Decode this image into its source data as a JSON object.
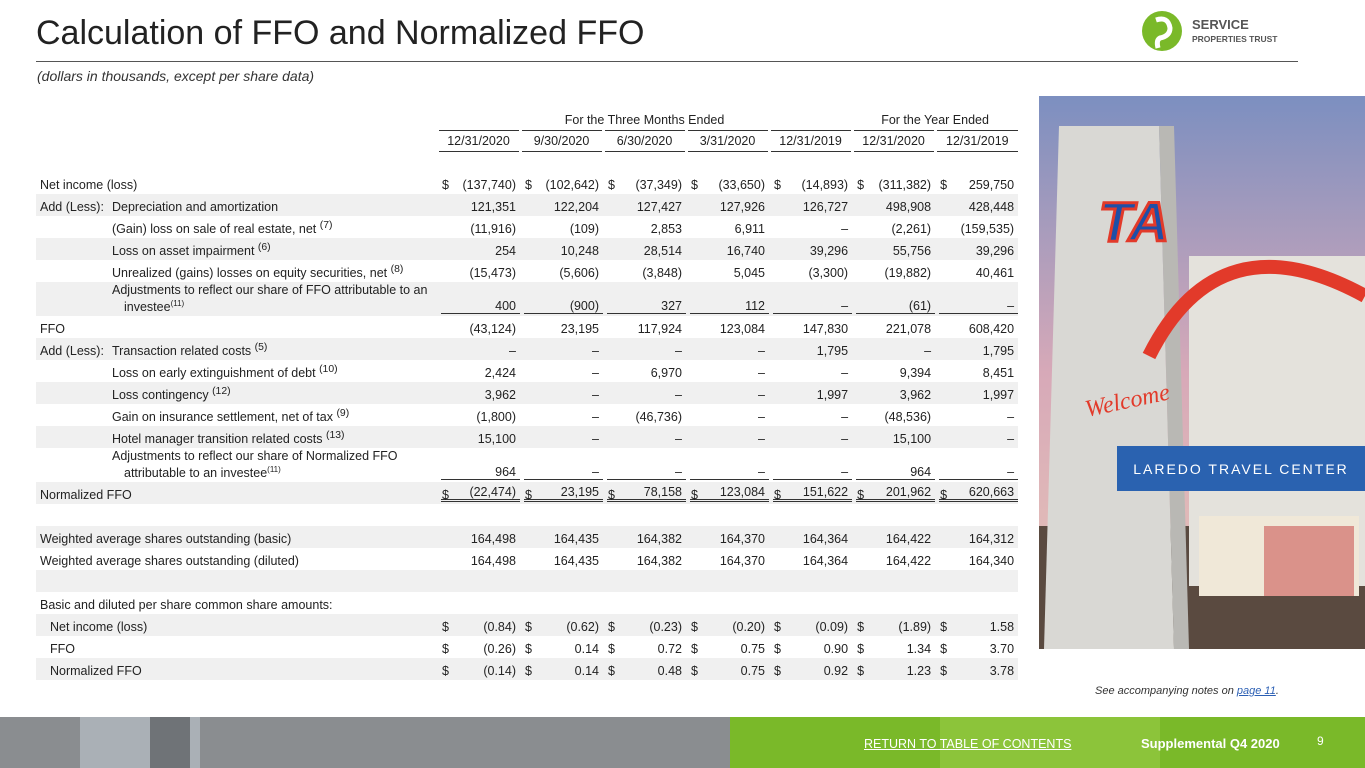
{
  "header": {
    "title": "Calculation of FFO and Normalized FFO",
    "subtitle": "(dollars in thousands, except per share data)",
    "logo": {
      "line1": "SERVICE",
      "line2": "PROPERTIES TRUST"
    }
  },
  "table": {
    "groups": [
      "For the Three Months Ended",
      "For the Year Ended"
    ],
    "columns": [
      "12/31/2020",
      "9/30/2020",
      "6/30/2020",
      "3/31/2020",
      "12/31/2019",
      "12/31/2020",
      "12/31/2019"
    ],
    "rows": [
      {
        "label": "Net income (loss)",
        "symbol": "$",
        "cells": [
          "(137,740)",
          "(102,642)",
          "(37,349)",
          "(33,650)",
          "(14,893)",
          "(311,382)",
          "259,750"
        ]
      },
      {
        "prefix": "Add (Less):",
        "label": "Depreciation and amortization",
        "cells": [
          "121,351",
          "122,204",
          "127,427",
          "127,926",
          "126,727",
          "498,908",
          "428,448"
        ]
      },
      {
        "label": "(Gain) loss on sale of real estate, net",
        "note": "(7)",
        "cells": [
          "(11,916)",
          "(109)",
          "2,853",
          "6,911",
          "–",
          "(2,261)",
          "(159,535)"
        ]
      },
      {
        "label": "Loss on asset impairment",
        "note": "(6)",
        "cells": [
          "254",
          "10,248",
          "28,514",
          "16,740",
          "39,296",
          "55,756",
          "39,296"
        ]
      },
      {
        "label": "Unrealized (gains) losses on equity securities, net",
        "note": "(8)",
        "cells": [
          "(15,473)",
          "(5,606)",
          "(3,848)",
          "5,045",
          "(3,300)",
          "(19,882)",
          "40,461"
        ]
      },
      {
        "label": "Adjustments to reflect our share of FFO attributable to an investee",
        "note": "(11)",
        "cells": [
          "400",
          "(900)",
          "327",
          "112",
          "–",
          "(61)",
          "–"
        ]
      },
      {
        "label": "FFO",
        "cells": [
          "(43,124)",
          "23,195",
          "117,924",
          "123,084",
          "147,830",
          "221,078",
          "608,420"
        ]
      },
      {
        "prefix": "Add (Less):",
        "label": "Transaction related costs",
        "note": "(5)",
        "cells": [
          "–",
          "–",
          "–",
          "–",
          "1,795",
          "–",
          "1,795"
        ]
      },
      {
        "label": "Loss on early extinguishment of debt",
        "note": "(10)",
        "cells": [
          "2,424",
          "–",
          "6,970",
          "–",
          "–",
          "9,394",
          "8,451"
        ]
      },
      {
        "label": "Loss contingency",
        "note": "(12)",
        "cells": [
          "3,962",
          "–",
          "–",
          "–",
          "1,997",
          "3,962",
          "1,997"
        ]
      },
      {
        "label": "Gain on insurance settlement, net of tax",
        "note": "(9)",
        "cells": [
          "(1,800)",
          "–",
          "(46,736)",
          "–",
          "–",
          "(48,536)",
          "–"
        ]
      },
      {
        "label": "Hotel manager transition related costs",
        "note": "(13)",
        "cells": [
          "15,100",
          "–",
          "–",
          "–",
          "–",
          "15,100",
          "–"
        ]
      },
      {
        "label": "Adjustments to reflect our share of Normalized FFO attributable to an investee",
        "note": "(11)",
        "cells": [
          "964",
          "–",
          "–",
          "–",
          "–",
          "964",
          "–"
        ]
      },
      {
        "label": "Normalized FFO",
        "symbol": "$",
        "cells": [
          "(22,474)",
          "23,195",
          "78,158",
          "123,084",
          "151,622",
          "201,962",
          "620,663"
        ]
      },
      {
        "label": "Weighted average shares outstanding (basic)",
        "cells": [
          "164,498",
          "164,435",
          "164,382",
          "164,370",
          "164,364",
          "164,422",
          "164,312"
        ]
      },
      {
        "label": "Weighted average shares outstanding (diluted)",
        "cells": [
          "164,498",
          "164,435",
          "164,382",
          "164,370",
          "164,364",
          "164,422",
          "164,340"
        ]
      },
      {
        "label": "Basic and diluted per share common share amounts:"
      },
      {
        "label": "Net income (loss)",
        "symbol": "$",
        "cells": [
          "(0.84)",
          "(0.62)",
          "(0.23)",
          "(0.20)",
          "(0.09)",
          "(1.89)",
          "1.58"
        ]
      },
      {
        "label": "FFO",
        "symbol": "$",
        "cells": [
          "(0.26)",
          "0.14",
          "0.72",
          "0.75",
          "0.90",
          "1.34",
          "3.70"
        ]
      },
      {
        "label": "Normalized FFO",
        "symbol": "$",
        "cells": [
          "(0.14)",
          "0.14",
          "0.48",
          "0.75",
          "0.92",
          "1.23",
          "3.78"
        ]
      }
    ]
  },
  "photo": {
    "logo": "TA",
    "welcome": "Welcome",
    "sign": "LAREDO TRAVEL CENTER"
  },
  "footer": {
    "note_prefix": "See accompanying notes on ",
    "note_link": "page 11",
    "note_suffix": ".",
    "return_link": "RETURN TO TABLE OF CONTENTS",
    "supplemental": "Supplemental Q4 2020",
    "page": "9"
  }
}
